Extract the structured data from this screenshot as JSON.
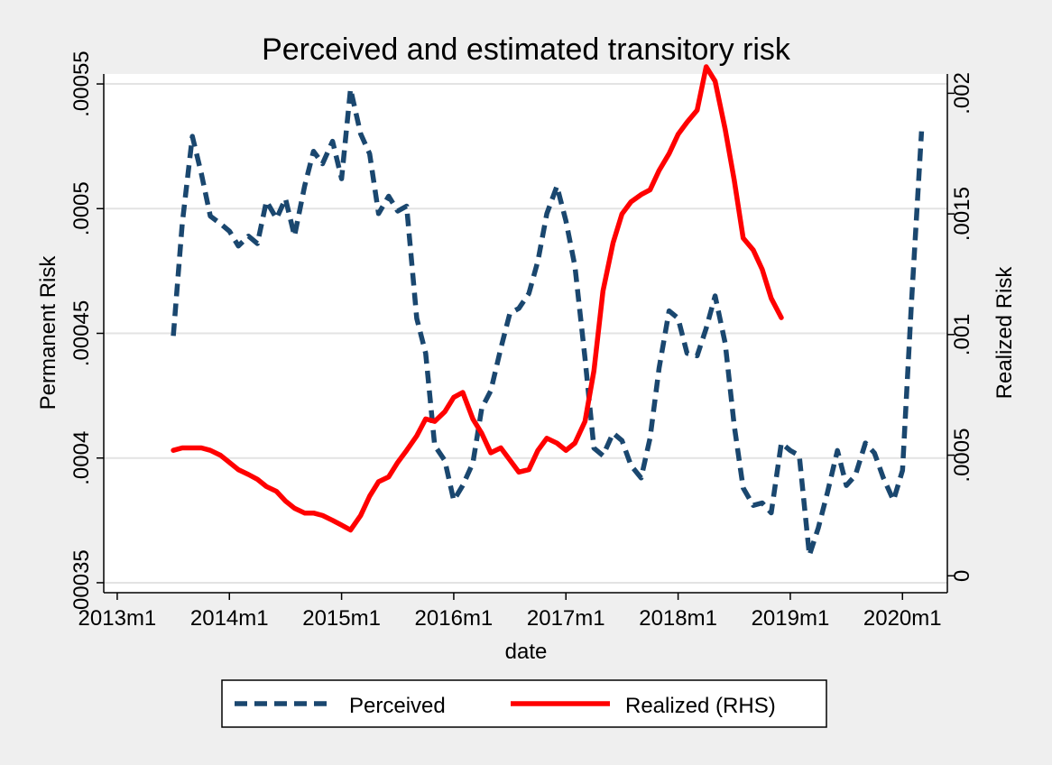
{
  "chart_data": {
    "type": "line",
    "title": "Perceived and estimated transitory risk",
    "xlabel": "date",
    "ylabel_left": "Permanent Risk",
    "ylabel_right": "Realized Risk",
    "x_ticks": [
      {
        "label": "2013m1",
        "value": 2013.0
      },
      {
        "label": "2014m1",
        "value": 2014.0
      },
      {
        "label": "2015m1",
        "value": 2015.0
      },
      {
        "label": "2016m1",
        "value": 2016.0
      },
      {
        "label": "2017m1",
        "value": 2017.0
      },
      {
        "label": "2018m1",
        "value": 2018.0
      },
      {
        "label": "2019m1",
        "value": 2019.0
      },
      {
        "label": "2020m1",
        "value": 2020.0
      }
    ],
    "y_left_ticks": [
      {
        "label": ".00035",
        "value": 0.00035
      },
      {
        "label": ".0004",
        "value": 0.0004
      },
      {
        "label": ".00045",
        "value": 0.00045
      },
      {
        "label": ".0005",
        "value": 0.0005
      },
      {
        "label": ".00055",
        "value": 0.00055
      }
    ],
    "y_right_ticks": [
      {
        "label": "0",
        "value": 0
      },
      {
        "label": ".0005",
        "value": 0.0005
      },
      {
        "label": ".001",
        "value": 0.001
      },
      {
        "label": ".0015",
        "value": 0.0015
      },
      {
        "label": ".002",
        "value": 0.002
      }
    ],
    "xlim": [
      2012.88,
      2020.4
    ],
    "ylim_left": [
      0.000346,
      0.000554
    ],
    "ylim_right": [
      -7e-05,
      0.00208
    ],
    "grid": true,
    "legend_position": "bottom",
    "series": [
      {
        "name": "Perceived",
        "axis": "left",
        "color": "#1a476f",
        "style": "dashed",
        "points": [
          [
            2013.5,
            0.000449
          ],
          [
            2013.58,
            0.000494
          ],
          [
            2013.67,
            0.000529
          ],
          [
            2013.75,
            0.000514
          ],
          [
            2013.83,
            0.000497
          ],
          [
            2013.92,
            0.000494
          ],
          [
            2014.0,
            0.000491
          ],
          [
            2014.08,
            0.000485
          ],
          [
            2014.17,
            0.000489
          ],
          [
            2014.25,
            0.000486
          ],
          [
            2014.33,
            0.000503
          ],
          [
            2014.42,
            0.000496
          ],
          [
            2014.5,
            0.000504
          ],
          [
            2014.58,
            0.000489
          ],
          [
            2014.67,
            0.000509
          ],
          [
            2014.75,
            0.000523
          ],
          [
            2014.83,
            0.000518
          ],
          [
            2014.92,
            0.000527
          ],
          [
            2015.0,
            0.000512
          ],
          [
            2015.08,
            0.000548
          ],
          [
            2015.17,
            0.00053
          ],
          [
            2015.25,
            0.000522
          ],
          [
            2015.33,
            0.000498
          ],
          [
            2015.42,
            0.000505
          ],
          [
            2015.5,
            0.000499
          ],
          [
            2015.58,
            0.000501
          ],
          [
            2015.67,
            0.000456
          ],
          [
            2015.75,
            0.000442
          ],
          [
            2015.83,
            0.000405
          ],
          [
            2015.92,
            0.000399
          ],
          [
            2016.0,
            0.000383
          ],
          [
            2016.08,
            0.000389
          ],
          [
            2016.17,
            0.000398
          ],
          [
            2016.25,
            0.00042
          ],
          [
            2016.33,
            0.000427
          ],
          [
            2016.42,
            0.000444
          ],
          [
            2016.5,
            0.000458
          ],
          [
            2016.58,
            0.00046
          ],
          [
            2016.67,
            0.000466
          ],
          [
            2016.75,
            0.000479
          ],
          [
            2016.83,
            0.000498
          ],
          [
            2016.92,
            0.000509
          ],
          [
            2017.0,
            0.000495
          ],
          [
            2017.08,
            0.000477
          ],
          [
            2017.17,
            0.00044
          ],
          [
            2017.25,
            0.000404
          ],
          [
            2017.33,
            0.000401
          ],
          [
            2017.42,
            0.00041
          ],
          [
            2017.5,
            0.000407
          ],
          [
            2017.58,
            0.000397
          ],
          [
            2017.67,
            0.000392
          ],
          [
            2017.75,
            0.000408
          ],
          [
            2017.83,
            0.000436
          ],
          [
            2017.92,
            0.000459
          ],
          [
            2018.0,
            0.000456
          ],
          [
            2018.08,
            0.000442
          ],
          [
            2018.17,
            0.000441
          ],
          [
            2018.25,
            0.000452
          ],
          [
            2018.33,
            0.000465
          ],
          [
            2018.42,
            0.000446
          ],
          [
            2018.5,
            0.000413
          ],
          [
            2018.58,
            0.000388
          ],
          [
            2018.67,
            0.000381
          ],
          [
            2018.75,
            0.000382
          ],
          [
            2018.83,
            0.000378
          ],
          [
            2018.92,
            0.000406
          ],
          [
            2019.0,
            0.000403
          ],
          [
            2019.08,
            0.000401
          ],
          [
            2019.17,
            0.000361
          ],
          [
            2019.25,
            0.000372
          ],
          [
            2019.33,
            0.000386
          ],
          [
            2019.42,
            0.000403
          ],
          [
            2019.5,
            0.000389
          ],
          [
            2019.58,
            0.000393
          ],
          [
            2019.67,
            0.000406
          ],
          [
            2019.75,
            0.000402
          ],
          [
            2019.83,
            0.000392
          ],
          [
            2019.92,
            0.000383
          ],
          [
            2020.0,
            0.000395
          ],
          [
            2020.08,
            0.000462
          ],
          [
            2020.17,
            0.000531
          ]
        ]
      },
      {
        "name": "Realized (RHS)",
        "axis": "right",
        "color": "#ff0000",
        "style": "solid",
        "points": [
          [
            2013.5,
            0.00052
          ],
          [
            2013.58,
            0.00053
          ],
          [
            2013.67,
            0.00053
          ],
          [
            2013.75,
            0.00053
          ],
          [
            2013.83,
            0.00052
          ],
          [
            2013.92,
            0.0005
          ],
          [
            2014.0,
            0.00047
          ],
          [
            2014.08,
            0.00044
          ],
          [
            2014.17,
            0.00042
          ],
          [
            2014.25,
            0.0004
          ],
          [
            2014.33,
            0.00037
          ],
          [
            2014.42,
            0.00035
          ],
          [
            2014.5,
            0.00031
          ],
          [
            2014.58,
            0.00028
          ],
          [
            2014.67,
            0.00026
          ],
          [
            2014.75,
            0.00026
          ],
          [
            2014.83,
            0.00025
          ],
          [
            2014.92,
            0.00023
          ],
          [
            2015.0,
            0.00021
          ],
          [
            2015.08,
            0.00019
          ],
          [
            2015.17,
            0.00025
          ],
          [
            2015.25,
            0.00033
          ],
          [
            2015.33,
            0.00039
          ],
          [
            2015.42,
            0.00041
          ],
          [
            2015.5,
            0.00047
          ],
          [
            2015.58,
            0.00052
          ],
          [
            2015.67,
            0.00058
          ],
          [
            2015.75,
            0.00065
          ],
          [
            2015.83,
            0.00064
          ],
          [
            2015.92,
            0.00068
          ],
          [
            2016.0,
            0.00074
          ],
          [
            2016.08,
            0.00076
          ],
          [
            2016.17,
            0.00065
          ],
          [
            2016.25,
            0.00059
          ],
          [
            2016.33,
            0.00051
          ],
          [
            2016.42,
            0.00053
          ],
          [
            2016.5,
            0.00048
          ],
          [
            2016.58,
            0.00043
          ],
          [
            2016.67,
            0.00044
          ],
          [
            2016.75,
            0.00052
          ],
          [
            2016.83,
            0.00057
          ],
          [
            2016.92,
            0.00055
          ],
          [
            2017.0,
            0.00052
          ],
          [
            2017.08,
            0.00055
          ],
          [
            2017.17,
            0.00064
          ],
          [
            2017.25,
            0.00085
          ],
          [
            2017.33,
            0.00118
          ],
          [
            2017.42,
            0.00138
          ],
          [
            2017.5,
            0.0015
          ],
          [
            2017.58,
            0.00155
          ],
          [
            2017.67,
            0.00158
          ],
          [
            2017.75,
            0.0016
          ],
          [
            2017.83,
            0.00168
          ],
          [
            2017.92,
            0.00175
          ],
          [
            2018.0,
            0.00183
          ],
          [
            2018.08,
            0.00188
          ],
          [
            2018.17,
            0.00193
          ],
          [
            2018.25,
            0.00211
          ],
          [
            2018.33,
            0.00205
          ],
          [
            2018.42,
            0.00185
          ],
          [
            2018.5,
            0.00164
          ],
          [
            2018.58,
            0.0014
          ],
          [
            2018.67,
            0.00135
          ],
          [
            2018.75,
            0.00127
          ],
          [
            2018.83,
            0.00115
          ],
          [
            2018.92,
            0.00107
          ]
        ]
      }
    ]
  }
}
